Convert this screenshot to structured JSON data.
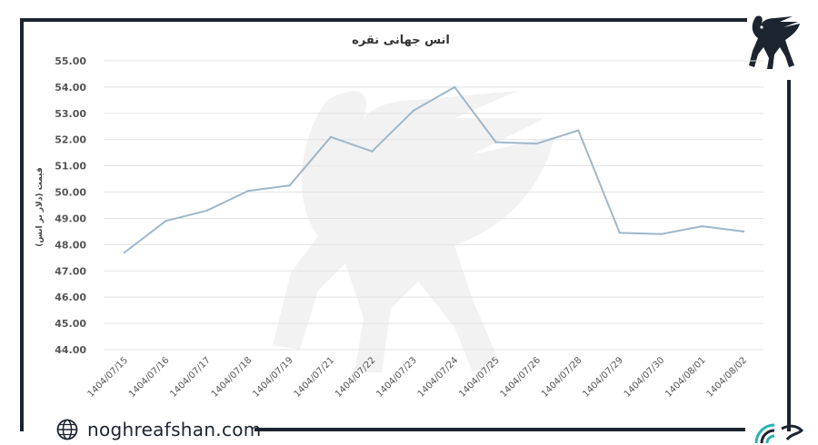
{
  "brand": {
    "site": "noghreafshan.com",
    "logo_icon": "winged-goat-logo-icon",
    "globe_icon": "globe-icon",
    "corner_icon": "signal-wave-icon",
    "frame_color": "#1c2430"
  },
  "chart_data": {
    "type": "line",
    "title": "انس جهانی نقره",
    "ylabel": "قیمت (دلار بر انس)",
    "xlabel": "",
    "ylim": [
      44,
      55
    ],
    "y_ticks": [
      "44.00",
      "45.00",
      "46.00",
      "47.00",
      "48.00",
      "49.00",
      "50.00",
      "51.00",
      "52.00",
      "53.00",
      "54.00",
      "55.00"
    ],
    "categories": [
      "1404/07/15",
      "1404/07/16",
      "1404/07/17",
      "1404/07/18",
      "1404/07/19",
      "1404/07/21",
      "1404/07/22",
      "1404/07/23",
      "1404/07/24",
      "1404/07/25",
      "1404/07/26",
      "1404/07/28",
      "1404/07/29",
      "1404/07/30",
      "1404/08/01",
      "1404/08/02"
    ],
    "series": [
      {
        "values": [
          47.7,
          48.9,
          49.3,
          50.05,
          50.25,
          52.1,
          51.55,
          53.1,
          54.0,
          51.9,
          51.85,
          52.35,
          48.45,
          48.4,
          48.7,
          48.5
        ],
        "color": "#9fb7c9"
      }
    ],
    "grid": true,
    "legend": "none"
  }
}
